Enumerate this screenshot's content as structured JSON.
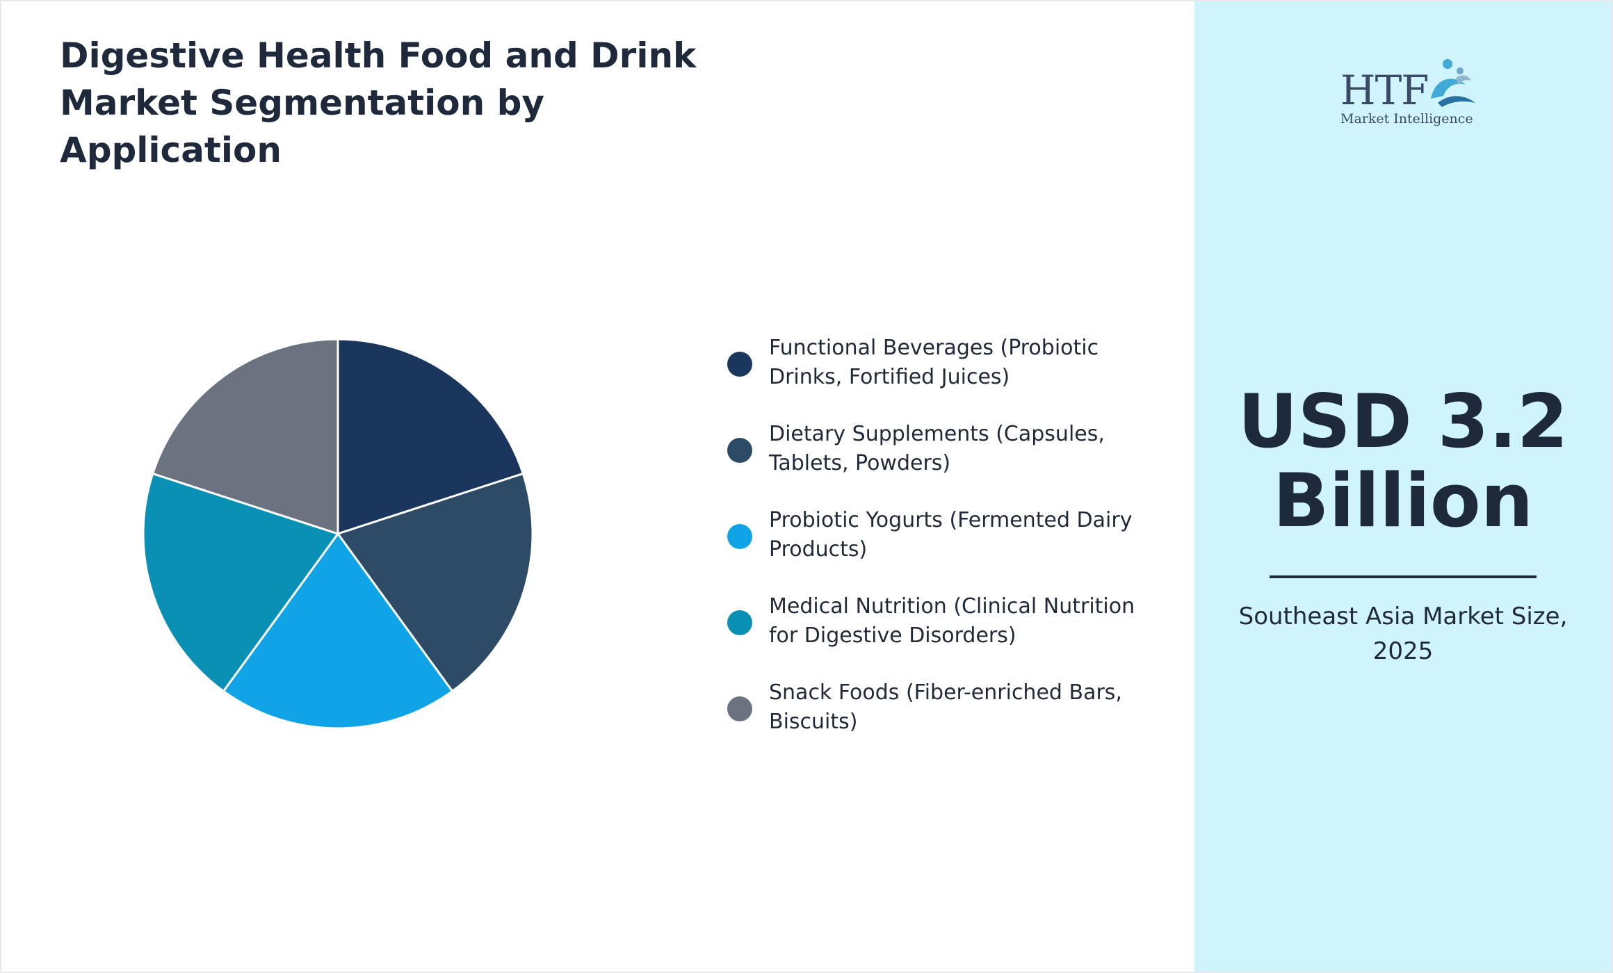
{
  "title": "Digestive Health Food and Drink Market Segmentation by Application",
  "logo": {
    "brand": "HTF",
    "subtitle": "Market Intelligence"
  },
  "headline": {
    "value": "USD 3.2 Billion",
    "caption": "Southeast Asia Market Size, 2025"
  },
  "colors": {
    "panel_background": "#cff4fc",
    "text_dark": "#1e293b"
  },
  "chart_data": {
    "type": "pie",
    "categories": [
      "Functional Beverages (Probiotic Drinks, Fortified Juices)",
      "Dietary Supplements (Capsules, Tablets, Powders)",
      "Probiotic Yogurts (Fermented Dairy Products)",
      "Medical Nutrition (Clinical Nutrition for Digestive Disorders)",
      "Snack Foods (Fiber-enriched Bars, Biscuits)"
    ],
    "values": [
      20,
      20,
      20,
      20,
      20
    ],
    "colors": [
      "#1b365d",
      "#2d4a66",
      "#10a4e6",
      "#0b90b5",
      "#6b7280"
    ],
    "legend_position": "right"
  }
}
